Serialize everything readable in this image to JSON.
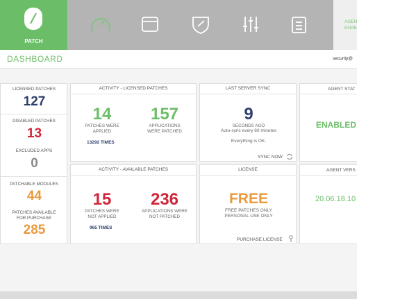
{
  "nav": {
    "logo_label": "PATCH",
    "agent_status": [
      "AGENT",
      "ENAB"
    ]
  },
  "header": {
    "title": "DASHBOARD",
    "user": "security@"
  },
  "sidebar": {
    "items": [
      {
        "label": "LICENSED PATCHES",
        "value": "127"
      },
      {
        "label": "DISABLED PATCHES",
        "value": "13"
      },
      {
        "label": "EXCLUDED APPS",
        "value": "0"
      },
      {
        "label": "PATCHABLE MODULES",
        "value": "44"
      },
      {
        "label": "PATCHES AVAILABLE FOR PURCHASE",
        "value": "285"
      }
    ]
  },
  "cards": {
    "activity_licensed": {
      "title": "ACTIVITY - LICENSED PATCHES",
      "stats": [
        {
          "value": "14",
          "label": "PATCHES WERE APPLIED"
        },
        {
          "value": "157",
          "label": "APPLICATIONS WERE PATCHED"
        }
      ],
      "note": "13292 TIMES"
    },
    "last_sync": {
      "title": "LAST SERVER SYNC",
      "value": "9",
      "label": "SECONDS AGO",
      "sub": "Auto-sync every 60 minutes",
      "status": "Everything is OK.",
      "action": "SYNC NOW"
    },
    "agent_status": {
      "title": "AGENT STAT",
      "value": "ENABLED"
    },
    "activity_available": {
      "title": "ACTIVITY - AVAILABLE PATCHES",
      "stats": [
        {
          "value": "15",
          "label": "PATCHES WERE NOT APPLIED"
        },
        {
          "value": "236",
          "label": "APPLICATIONS WERE NOT PATCHED"
        }
      ],
      "note": "965 TIMES"
    },
    "license": {
      "title": "LICENSE",
      "value": "FREE",
      "lines": [
        "FREE PATCHES ONLY",
        "PERSONAL USE ONLY"
      ],
      "action": "PURCHASE LICENSE"
    },
    "agent_version": {
      "title": "AGENT VERS",
      "value": "20.06.18.10"
    }
  }
}
